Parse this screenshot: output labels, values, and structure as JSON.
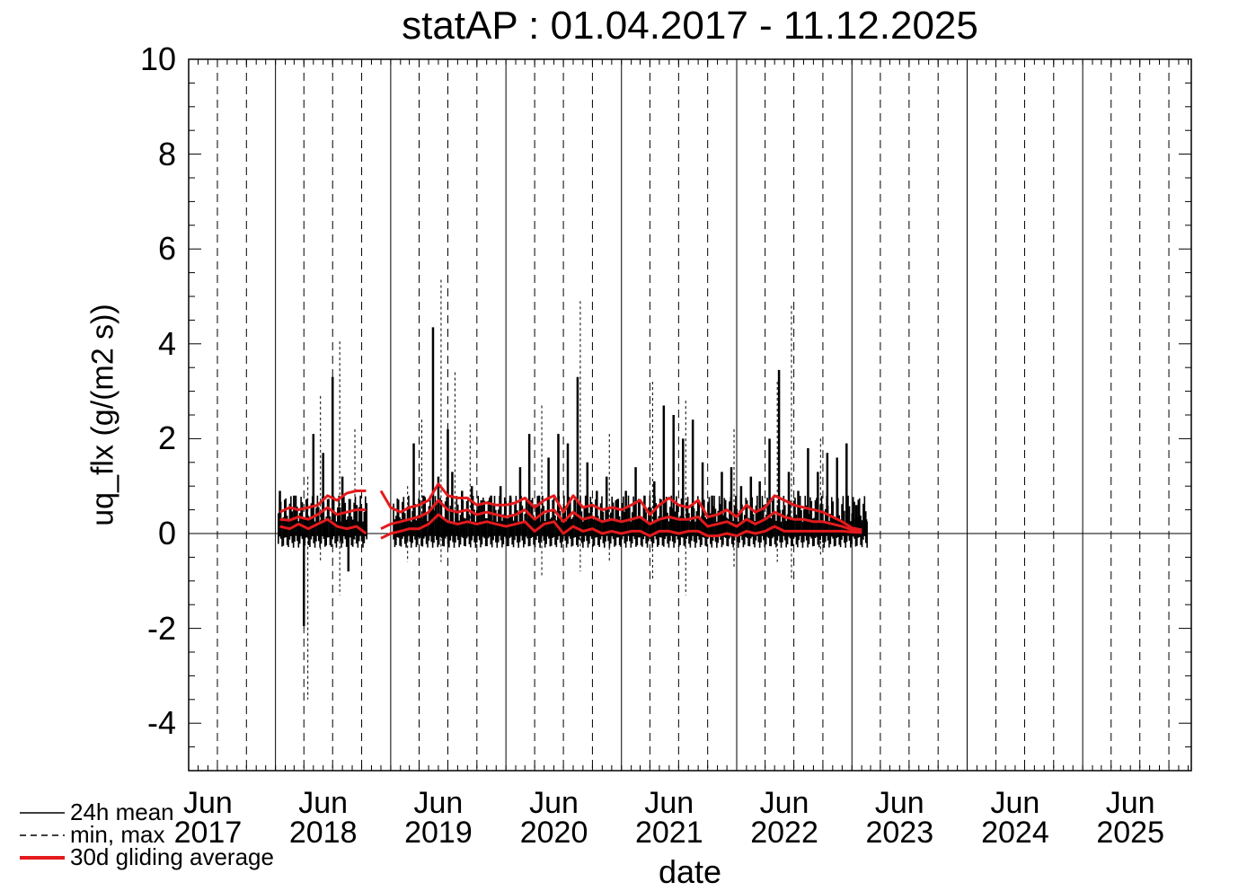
{
  "chart_data": {
    "type": "line",
    "title": "statAP : 01.04.2017 - 11.12.2025",
    "xlabel": "date",
    "ylabel": "uq_flx (g/(m2 s))",
    "xlim": [
      "2017-04-01",
      "2025-12-11"
    ],
    "ylim": [
      -5,
      10
    ],
    "yticks": [
      -4,
      -2,
      0,
      2,
      4,
      6,
      8,
      10
    ],
    "xticks": [
      {
        "month": "Jun",
        "year": "2017"
      },
      {
        "month": "Jun",
        "year": "2018"
      },
      {
        "month": "Jun",
        "year": "2019"
      },
      {
        "month": "Jun",
        "year": "2020"
      },
      {
        "month": "Jun",
        "year": "2021"
      },
      {
        "month": "Jun",
        "year": "2022"
      },
      {
        "month": "Jun",
        "year": "2023"
      },
      {
        "month": "Jun",
        "year": "2024"
      },
      {
        "month": "Jun",
        "year": "2025"
      }
    ],
    "grid": true,
    "legend_position": "bottom-left",
    "series": [
      {
        "name": "24h mean",
        "style": "solid",
        "color": "#000000",
        "x": [
          "2018-01-15",
          "2018-02-01",
          "2018-03-01",
          "2018-04-01",
          "2018-04-10",
          "2018-05-01",
          "2018-06-01",
          "2018-07-01",
          "2018-08-01",
          "2018-08-20",
          "2018-09-15",
          "2018-10-15",
          "2019-01-15",
          "2019-02-15",
          "2019-03-15",
          "2019-04-15",
          "2019-05-15",
          "2019-06-01",
          "2019-07-01",
          "2019-07-15",
          "2019-08-15",
          "2019-09-15",
          "2019-10-15",
          "2019-11-15",
          "2019-12-15",
          "2020-01-15",
          "2020-02-15",
          "2020-03-15",
          "2020-04-15",
          "2020-05-15",
          "2020-06-15",
          "2020-07-15",
          "2020-08-15",
          "2020-09-15",
          "2020-10-15",
          "2020-11-15",
          "2020-12-15",
          "2021-01-15",
          "2021-02-15",
          "2021-03-15",
          "2021-04-15",
          "2021-05-15",
          "2021-06-15",
          "2021-07-15",
          "2021-08-15",
          "2021-09-15",
          "2021-10-15",
          "2021-11-15",
          "2021-12-15",
          "2022-01-15",
          "2022-02-15",
          "2022-03-15",
          "2022-04-15",
          "2022-05-15",
          "2022-06-15",
          "2022-07-15",
          "2022-08-15",
          "2022-09-15",
          "2022-10-15",
          "2022-11-15",
          "2022-12-15",
          "2023-01-15",
          "2023-02-15"
        ],
        "values": [
          0.9,
          0.5,
          0.8,
          -1.95,
          0.7,
          2.1,
          1.7,
          3.3,
          1.2,
          -0.8,
          0.6,
          0.2,
          0.3,
          0.2,
          1.9,
          0.8,
          4.35,
          1.2,
          2.2,
          1.3,
          0.9,
          1.0,
          0.7,
          0.8,
          1.0,
          0.8,
          1.4,
          2.1,
          0.8,
          1.6,
          2.1,
          1.9,
          3.3,
          1.5,
          0.9,
          1.2,
          0.7,
          0.9,
          1.4,
          0.8,
          1.1,
          2.7,
          2.5,
          2.0,
          2.4,
          1.5,
          0.8,
          1.3,
          1.4,
          1.0,
          1.2,
          1.1,
          2.0,
          3.45,
          1.3,
          0.9,
          1.8,
          1.3,
          1.7,
          1.6,
          1.9,
          0.6,
          0.3
        ]
      },
      {
        "name": "min, max",
        "style": "dashed",
        "color": "#000000",
        "x": [
          "2018-04-05",
          "2018-05-15",
          "2018-07-15",
          "2018-09-01",
          "2019-02-15",
          "2019-04-01",
          "2019-06-01",
          "2019-07-15",
          "2019-09-01",
          "2020-04-15",
          "2020-08-15",
          "2020-11-15",
          "2021-04-01",
          "2021-07-15",
          "2021-12-15",
          "2022-05-01",
          "2022-06-15",
          "2022-09-15"
        ],
        "max_values": [
          1.2,
          2.9,
          4.05,
          2.2,
          1.0,
          2.4,
          5.35,
          3.4,
          2.3,
          2.7,
          4.9,
          2.1,
          3.2,
          2.8,
          2.2,
          3.2,
          4.8,
          2.0
        ],
        "min_values": [
          -3.5,
          -0.6,
          -1.3,
          -0.2,
          -0.6,
          -0.3,
          -0.6,
          -0.2,
          -0.2,
          -0.9,
          -0.8,
          -0.6,
          -1.0,
          -1.3,
          -0.7,
          -0.6,
          -1.0,
          -0.5
        ]
      },
      {
        "name": "30d gliding average",
        "style": "solid-thick",
        "color": "#e41a1c",
        "x": [
          "2018-01-15",
          "2018-02-15",
          "2018-03-15",
          "2018-04-15",
          "2018-05-15",
          "2018-06-15",
          "2018-07-15",
          "2018-08-15",
          "2018-09-15",
          "2018-10-15",
          "2018-12-01",
          "2019-01-01",
          "2019-02-01",
          "2019-03-01",
          "2019-04-01",
          "2019-05-01",
          "2019-06-01",
          "2019-07-01",
          "2019-08-01",
          "2019-09-01",
          "2019-10-01",
          "2019-11-01",
          "2019-12-01",
          "2020-01-01",
          "2020-02-01",
          "2020-03-01",
          "2020-04-01",
          "2020-05-01",
          "2020-06-01",
          "2020-07-01",
          "2020-08-01",
          "2020-09-01",
          "2020-10-01",
          "2020-11-01",
          "2020-12-01",
          "2021-01-01",
          "2021-02-01",
          "2021-03-01",
          "2021-04-01",
          "2021-05-01",
          "2021-06-01",
          "2021-07-01",
          "2021-08-01",
          "2021-09-01",
          "2021-10-01",
          "2021-11-01",
          "2021-12-01",
          "2022-01-01",
          "2022-02-01",
          "2022-03-01",
          "2022-04-01",
          "2022-05-01",
          "2022-06-01",
          "2022-07-01",
          "2022-08-01",
          "2022-09-01",
          "2022-10-01",
          "2022-11-01",
          "2022-12-01",
          "2023-01-01",
          "2023-02-01"
        ],
        "values": [
          0.3,
          0.28,
          0.35,
          0.3,
          0.4,
          0.55,
          0.4,
          0.45,
          0.5,
          0.5,
          0.1,
          0.2,
          0.25,
          0.3,
          0.35,
          0.45,
          0.7,
          0.5,
          0.45,
          0.5,
          0.4,
          0.45,
          0.4,
          0.35,
          0.4,
          0.5,
          0.3,
          0.45,
          0.5,
          0.25,
          0.45,
          0.3,
          0.35,
          0.25,
          0.3,
          0.25,
          0.3,
          0.35,
          0.2,
          0.3,
          0.35,
          0.3,
          0.3,
          0.35,
          0.15,
          0.2,
          0.25,
          0.15,
          0.3,
          0.2,
          0.3,
          0.45,
          0.35,
          0.3,
          0.3,
          0.25,
          0.25,
          0.2,
          0.15,
          0.08,
          0.05
        ],
        "upper_values": [
          0.45,
          0.55,
          0.5,
          0.55,
          0.6,
          0.8,
          0.7,
          0.85,
          0.9,
          0.9,
          0.9,
          0.55,
          0.45,
          0.55,
          0.6,
          0.7,
          1.05,
          0.8,
          0.75,
          0.75,
          0.6,
          0.65,
          0.6,
          0.6,
          0.65,
          0.75,
          0.55,
          0.7,
          0.8,
          0.45,
          0.8,
          0.55,
          0.6,
          0.5,
          0.55,
          0.5,
          0.6,
          0.7,
          0.4,
          0.6,
          0.75,
          0.6,
          0.55,
          0.7,
          0.35,
          0.4,
          0.5,
          0.35,
          0.6,
          0.45,
          0.55,
          0.8,
          0.7,
          0.6,
          0.55,
          0.5,
          0.45,
          0.35,
          0.25,
          0.12,
          0.08
        ],
        "lower_values": [
          0.15,
          0.1,
          0.2,
          0.1,
          0.2,
          0.3,
          0.15,
          0.1,
          0.15,
          0.0,
          -0.1,
          0.0,
          0.05,
          0.1,
          0.1,
          0.2,
          0.4,
          0.25,
          0.2,
          0.25,
          0.2,
          0.25,
          0.2,
          0.15,
          0.2,
          0.25,
          0.05,
          0.2,
          0.25,
          0.0,
          0.15,
          0.05,
          0.1,
          0.0,
          0.05,
          0.0,
          0.05,
          0.05,
          -0.05,
          0.05,
          0.05,
          0.0,
          0.05,
          0.05,
          -0.05,
          -0.05,
          0.0,
          -0.05,
          0.05,
          0.0,
          0.05,
          0.15,
          0.05,
          0.05,
          0.05,
          0.05,
          0.05,
          0.05,
          0.05,
          0.03,
          0.02
        ]
      }
    ]
  }
}
